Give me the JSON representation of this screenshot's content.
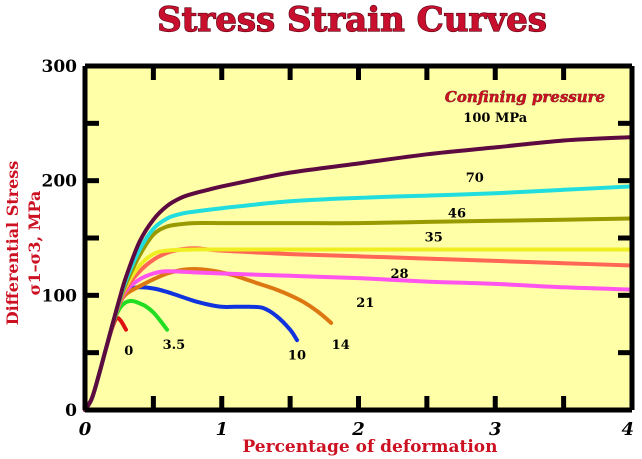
{
  "title": "Stress Strain Curves",
  "chart_data": {
    "type": "line",
    "title": "Stress Strain Curves",
    "xlabel": "Percentage of deformation",
    "ylabel_line1": "Differential Stress",
    "ylabel_line2": "σ1–σ3, MPa",
    "xlim": [
      0,
      4
    ],
    "ylim": [
      0,
      300
    ],
    "xticks": [
      "0",
      "1",
      "2",
      "3",
      "4"
    ],
    "yticks": [
      "0",
      "100",
      "200",
      "300"
    ],
    "legend_title": "Confining pressure",
    "grid": false,
    "background": "#ffffa8",
    "series": [
      {
        "name": "0",
        "color": "#dd1111",
        "x": [
          0,
          0.05,
          0.1,
          0.15,
          0.2,
          0.23,
          0.26,
          0.3
        ],
        "y": [
          0,
          10,
          30,
          52,
          72,
          80,
          78,
          70
        ]
      },
      {
        "name": "3.5",
        "color": "#22dd22",
        "x": [
          0,
          0.05,
          0.1,
          0.15,
          0.2,
          0.25,
          0.3,
          0.35,
          0.4,
          0.45,
          0.5,
          0.55,
          0.6
        ],
        "y": [
          0,
          10,
          30,
          52,
          74,
          88,
          94,
          95,
          93,
          90,
          85,
          78,
          70
        ]
      },
      {
        "name": "10",
        "color": "#1133dd",
        "x": [
          0,
          0.05,
          0.1,
          0.15,
          0.2,
          0.25,
          0.3,
          0.35,
          0.4,
          0.5,
          0.6,
          0.7,
          0.8,
          0.9,
          1.0,
          1.1,
          1.2,
          1.3,
          1.4,
          1.5,
          1.55
        ],
        "y": [
          0,
          10,
          30,
          52,
          74,
          92,
          102,
          106,
          107,
          106,
          103,
          99,
          95,
          92,
          90,
          90,
          90,
          89,
          82,
          70,
          61
        ]
      },
      {
        "name": "14",
        "color": "#dd7711",
        "x": [
          0,
          0.05,
          0.1,
          0.15,
          0.2,
          0.25,
          0.3,
          0.4,
          0.5,
          0.6,
          0.7,
          0.8,
          0.9,
          1.0,
          1.1,
          1.2,
          1.3,
          1.4,
          1.5,
          1.6,
          1.7,
          1.8
        ],
        "y": [
          0,
          10,
          30,
          52,
          74,
          92,
          101,
          108,
          114,
          119,
          122,
          123,
          122,
          120,
          117,
          113,
          109,
          105,
          100,
          94,
          86,
          76
        ]
      },
      {
        "name": "21",
        "color": "#ff55ee",
        "x": [
          0,
          0.05,
          0.1,
          0.15,
          0.2,
          0.25,
          0.3,
          0.4,
          0.5,
          0.6,
          0.8,
          1.0,
          1.5,
          2.0,
          2.5,
          3.0,
          3.5,
          4.0
        ],
        "y": [
          0,
          10,
          30,
          52,
          74,
          92,
          104,
          114,
          119,
          121,
          120,
          119,
          117,
          115,
          112,
          110,
          107,
          105
        ]
      },
      {
        "name": "28",
        "color": "#ff6655",
        "x": [
          0,
          0.05,
          0.1,
          0.15,
          0.2,
          0.25,
          0.3,
          0.4,
          0.5,
          0.6,
          0.7,
          0.8,
          0.9,
          1.0,
          1.5,
          2.0,
          2.5,
          3.0,
          3.5,
          4.0
        ],
        "y": [
          0,
          10,
          30,
          52,
          74,
          92,
          106,
          121,
          131,
          137,
          140,
          141,
          140,
          139,
          136,
          134,
          132,
          130,
          128,
          126
        ]
      },
      {
        "name": "35",
        "color": "#eeee22",
        "x": [
          0,
          0.05,
          0.1,
          0.15,
          0.2,
          0.25,
          0.3,
          0.4,
          0.5,
          0.6,
          0.8,
          1.0,
          1.5,
          2.0,
          2.5,
          3.0,
          3.5,
          4.0
        ],
        "y": [
          0,
          10,
          30,
          52,
          74,
          94,
          108,
          126,
          136,
          139,
          140,
          140,
          140,
          140,
          140,
          140,
          140,
          140
        ]
      },
      {
        "name": "46",
        "color": "#999900",
        "x": [
          0,
          0.05,
          0.1,
          0.15,
          0.2,
          0.25,
          0.3,
          0.4,
          0.5,
          0.6,
          0.7,
          0.8,
          1.0,
          1.5,
          2.0,
          2.5,
          3.0,
          3.5,
          4.0
        ],
        "y": [
          0,
          10,
          30,
          52,
          74,
          94,
          110,
          135,
          153,
          160,
          162,
          163,
          163,
          163,
          163,
          164,
          165,
          166,
          167
        ]
      },
      {
        "name": "70",
        "color": "#22dddd",
        "x": [
          0,
          0.05,
          0.1,
          0.15,
          0.2,
          0.25,
          0.3,
          0.4,
          0.5,
          0.6,
          0.7,
          0.8,
          1.0,
          1.5,
          2.0,
          2.5,
          3.0,
          3.5,
          4.0
        ],
        "y": [
          0,
          10,
          30,
          52,
          74,
          95,
          113,
          140,
          158,
          167,
          171,
          173,
          176,
          182,
          185,
          187,
          189,
          192,
          195
        ]
      },
      {
        "name": "100 MPa",
        "color": "#5c0a40",
        "x": [
          0,
          0.05,
          0.1,
          0.15,
          0.2,
          0.25,
          0.3,
          0.4,
          0.5,
          0.6,
          0.7,
          0.8,
          0.9,
          1.0,
          1.2,
          1.5,
          2.0,
          2.5,
          3.0,
          3.5,
          4.0
        ],
        "y": [
          0,
          10,
          30,
          52,
          74,
          96,
          116,
          147,
          166,
          178,
          185,
          189,
          192,
          195,
          200,
          207,
          215,
          223,
          229,
          235,
          238
        ]
      }
    ],
    "labels": [
      {
        "text": "0",
        "x": 0.32,
        "y": 48
      },
      {
        "text": "3.5",
        "x": 0.65,
        "y": 53
      },
      {
        "text": "10",
        "x": 1.55,
        "y": 44
      },
      {
        "text": "14",
        "x": 1.87,
        "y": 53
      },
      {
        "text": "21",
        "x": 2.05,
        "y": 90
      },
      {
        "text": "28",
        "x": 2.3,
        "y": 115
      },
      {
        "text": "35",
        "x": 2.55,
        "y": 147
      },
      {
        "text": "46",
        "x": 2.72,
        "y": 168
      },
      {
        "text": "70",
        "x": 2.85,
        "y": 199
      },
      {
        "text": "100 MPa",
        "x": 3.0,
        "y": 251
      }
    ]
  }
}
